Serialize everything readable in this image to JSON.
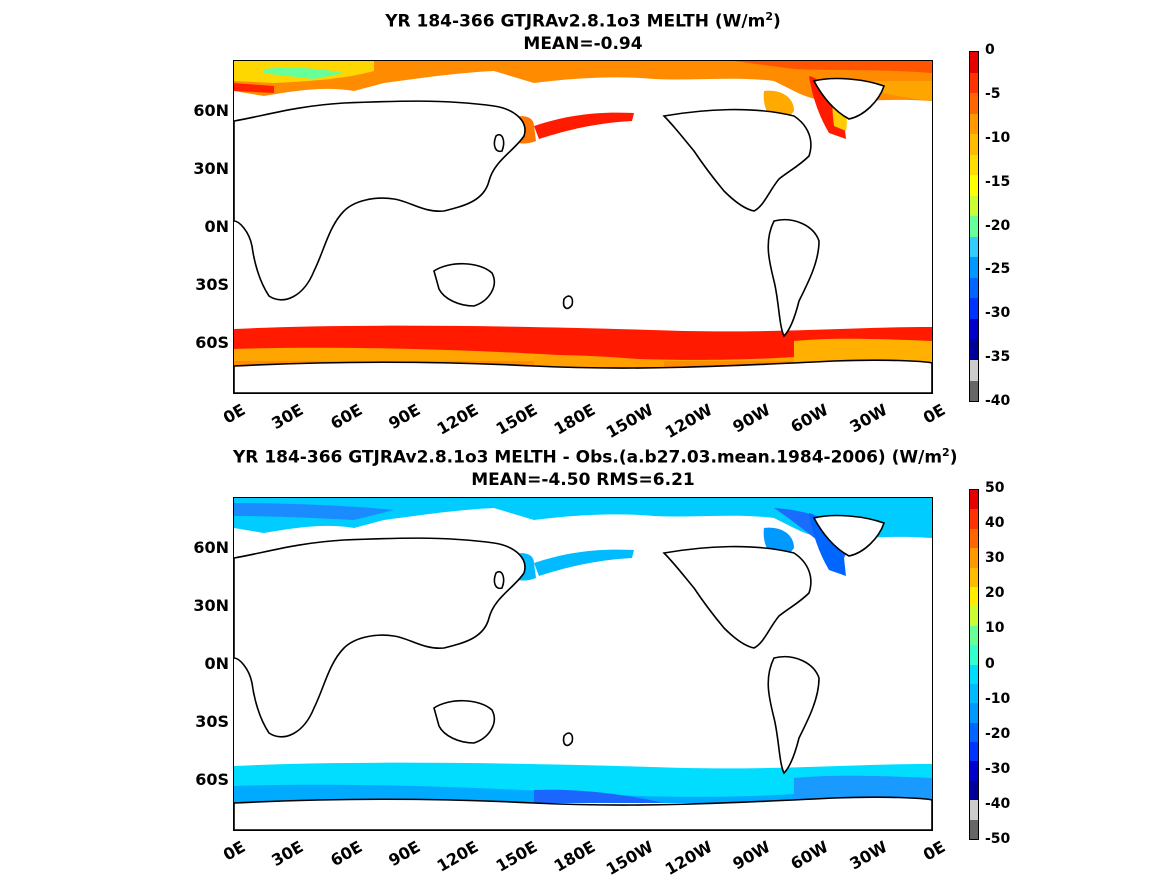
{
  "panel1": {
    "title_line1": "YR 184-366 GTJRAv2.8.1o3  MELTH (W/m",
    "title_sup": "2",
    "title_close": ")",
    "title_line2": "MEAN=-0.94",
    "colorbar_ticks": [
      "0",
      "-5",
      "-10",
      "-15",
      "-20",
      "-25",
      "-30",
      "-35",
      "-40"
    ],
    "colorbar_colors": [
      "#e60000",
      "#ff3300",
      "#ff6600",
      "#ff9900",
      "#ffbb00",
      "#ffdd00",
      "#ffff00",
      "#ccff33",
      "#66ff99",
      "#33ccff",
      "#0099ff",
      "#0066ff",
      "#0033ff",
      "#0000cc",
      "#000099",
      "#cccccc",
      "#666666"
    ]
  },
  "panel2": {
    "title_line1": "YR 184-366 GTJRAv2.8.1o3 MELTH - Obs.(a.b27.03.mean.1984-2006) (W/m",
    "title_sup": "2",
    "title_close": ")",
    "title_line2": "MEAN=-4.50 RMS=6.21",
    "colorbar_ticks": [
      "50",
      "40",
      "30",
      "20",
      "10",
      "0",
      "-10",
      "-20",
      "-30",
      "-40",
      "-50"
    ],
    "colorbar_colors": [
      "#e60000",
      "#ff3300",
      "#ff6600",
      "#ff9900",
      "#ffbb00",
      "#ffee00",
      "#ccff33",
      "#66ff99",
      "#33ffcc",
      "#00ddff",
      "#00bbff",
      "#0099ff",
      "#0066ff",
      "#0033ff",
      "#0000cc",
      "#000099",
      "#cccccc",
      "#666666"
    ]
  },
  "axes": {
    "lat_labels": [
      "60N",
      "30N",
      "0N",
      "30S",
      "60S"
    ],
    "lon_labels": [
      "0E",
      "30E",
      "60E",
      "90E",
      "120E",
      "150E",
      "180E",
      "150W",
      "120W",
      "90W",
      "60W",
      "30W",
      "0E"
    ]
  }
}
